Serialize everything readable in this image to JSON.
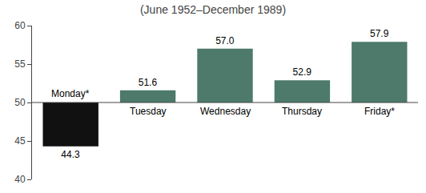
{
  "chart_data": {
    "type": "bar",
    "title": "(June 1952–December 1989)",
    "categories": [
      "Monday*",
      "Tuesday",
      "Wednesday",
      "Thursday",
      "Friday*"
    ],
    "values": [
      44.3,
      51.6,
      57.0,
      52.9,
      57.9
    ],
    "value_labels": [
      "44.3",
      "51.6",
      "57.0",
      "52.9",
      "57.9"
    ],
    "baseline": 50,
    "colors": [
      "#111111",
      "#4d7a6a",
      "#4d7a6a",
      "#4d7a6a",
      "#4d7a6a"
    ],
    "ylim": [
      40,
      60
    ],
    "yticks": [
      40,
      45,
      50,
      55,
      60
    ],
    "data_labels": true,
    "grid": false
  }
}
